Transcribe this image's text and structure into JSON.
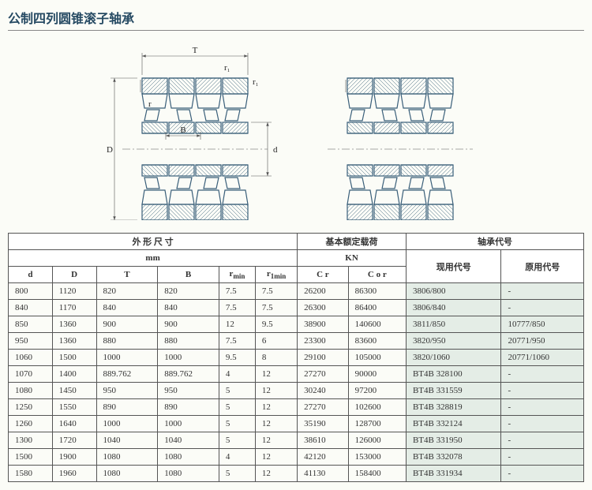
{
  "page_title": "公制四列圆锥滚子轴承",
  "diagram": {
    "labels": {
      "T": "T",
      "r1_top": "r₁",
      "r1_side": "r₁",
      "r": "r",
      "B": "B",
      "D": "D",
      "d": "d"
    },
    "stroke_color": "#3a5f7a",
    "thin_stroke": "#555",
    "stroke_width": 1.2,
    "thin_width": 0.6
  },
  "table": {
    "group_headers": {
      "dims": "外 形 尺 寸",
      "load": "基本额定载荷",
      "codes": "轴承代号"
    },
    "unit_headers": {
      "mm": "mm",
      "kn": "KN"
    },
    "code_headers": {
      "current": "现用代号",
      "original": "原用代号"
    },
    "columns": {
      "d": "d",
      "D": "D",
      "T": "T",
      "B": "B",
      "rmin": "rₘᵢₙ",
      "r1min": "r₁ₘᵢₙ",
      "Cr": "C r",
      "Cor": "C o r"
    },
    "rows": [
      {
        "d": "800",
        "D": "1120",
        "T": "820",
        "B": "820",
        "rmin": "7.5",
        "r1min": "7.5",
        "Cr": "26200",
        "Cor": "86300",
        "cur": "3806/800",
        "orig": "-"
      },
      {
        "d": "840",
        "D": "1170",
        "T": "840",
        "B": "840",
        "rmin": "7.5",
        "r1min": "7.5",
        "Cr": "26300",
        "Cor": "86400",
        "cur": "3806/840",
        "orig": "-"
      },
      {
        "d": "850",
        "D": "1360",
        "T": "900",
        "B": "900",
        "rmin": "12",
        "r1min": "9.5",
        "Cr": "38900",
        "Cor": "140600",
        "cur": "3811/850",
        "orig": "10777/850"
      },
      {
        "d": "950",
        "D": "1360",
        "T": "880",
        "B": "880",
        "rmin": "7.5",
        "r1min": "6",
        "Cr": "23300",
        "Cor": "83600",
        "cur": "3820/950",
        "orig": "20771/950"
      },
      {
        "d": "1060",
        "D": "1500",
        "T": "1000",
        "B": "1000",
        "rmin": "9.5",
        "r1min": "8",
        "Cr": "29100",
        "Cor": "105000",
        "cur": "3820/1060",
        "orig": "20771/1060"
      },
      {
        "d": "1070",
        "D": "1400",
        "T": "889.762",
        "B": "889.762",
        "rmin": "4",
        "r1min": "12",
        "Cr": "27270",
        "Cor": "90000",
        "cur": "BT4B 328100",
        "orig": "-"
      },
      {
        "d": "1080",
        "D": "1450",
        "T": "950",
        "B": "950",
        "rmin": "5",
        "r1min": "12",
        "Cr": "30240",
        "Cor": "97200",
        "cur": "BT4B 331559",
        "orig": "-"
      },
      {
        "d": "1250",
        "D": "1550",
        "T": "890",
        "B": "890",
        "rmin": "5",
        "r1min": "12",
        "Cr": "27270",
        "Cor": "102600",
        "cur": "BT4B 328819",
        "orig": "-"
      },
      {
        "d": "1260",
        "D": "1640",
        "T": "1000",
        "B": "1000",
        "rmin": "5",
        "r1min": "12",
        "Cr": "35190",
        "Cor": "128700",
        "cur": "BT4B 332124",
        "orig": "-"
      },
      {
        "d": "1300",
        "D": "1720",
        "T": "1040",
        "B": "1040",
        "rmin": "5",
        "r1min": "12",
        "Cr": "38610",
        "Cor": "126000",
        "cur": "BT4B 331950",
        "orig": "-"
      },
      {
        "d": "1500",
        "D": "1900",
        "T": "1080",
        "B": "1080",
        "rmin": "4",
        "r1min": "12",
        "Cr": "42120",
        "Cor": "153000",
        "cur": "BT4B 332078",
        "orig": "-"
      },
      {
        "d": "1580",
        "D": "1960",
        "T": "1080",
        "B": "1080",
        "rmin": "5",
        "r1min": "12",
        "Cr": "41130",
        "Cor": "158400",
        "cur": "BT4B 331934",
        "orig": "-"
      }
    ]
  }
}
